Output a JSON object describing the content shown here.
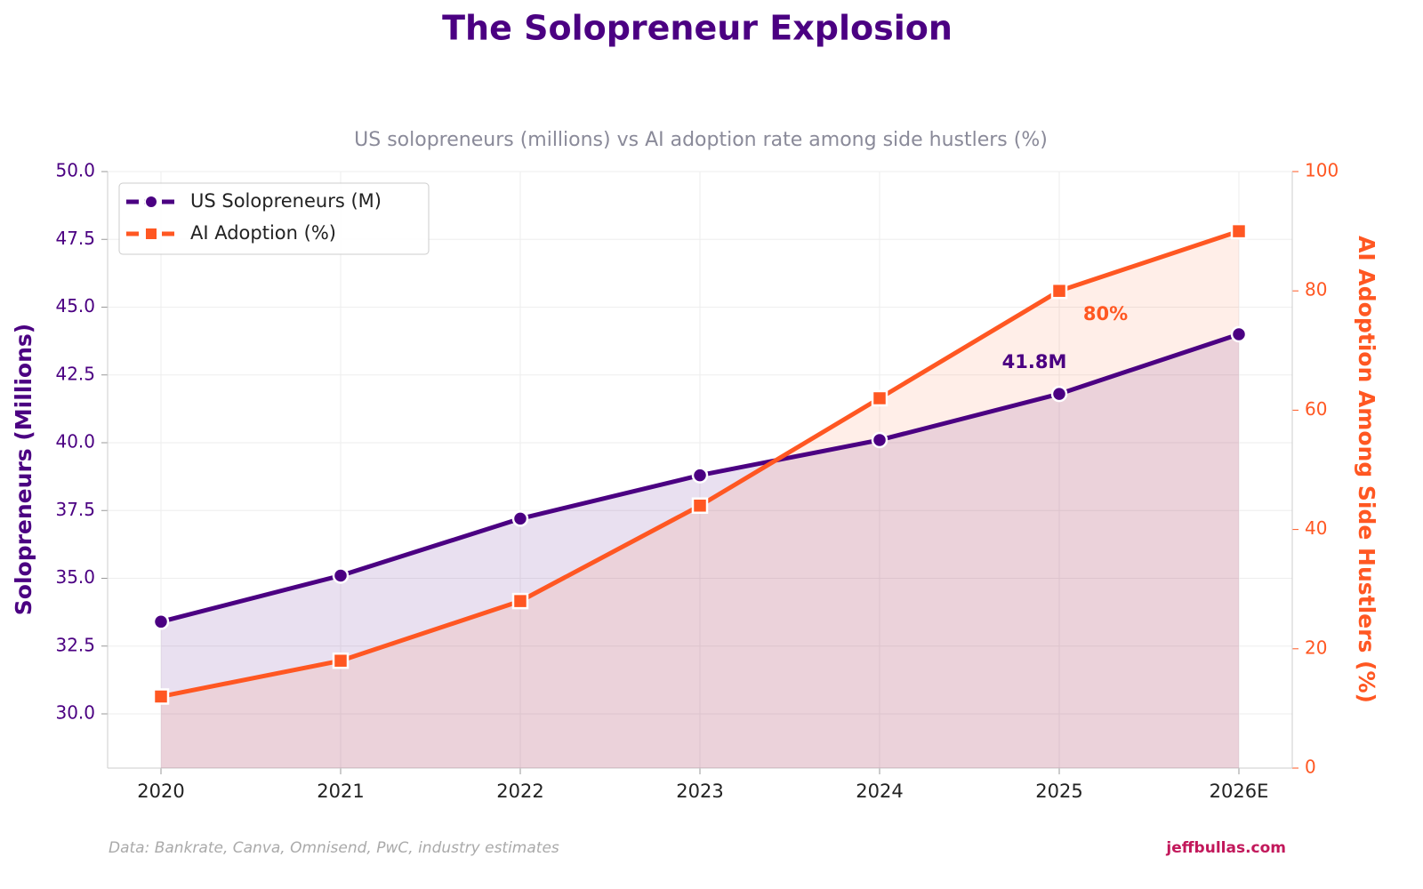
{
  "chart_data": {
    "type": "line",
    "title": "The Solopreneur Explosion",
    "subtitle": "US solopreneurs (millions) vs AI adoption rate among side hustlers (%)",
    "ylabel": "Solopreneurs (Millions)",
    "y2label": "AI Adoption Among Side Hustlers (%)",
    "categories": [
      "2020",
      "2021",
      "2022",
      "2023",
      "2024",
      "2025",
      "2026E"
    ],
    "series": [
      {
        "name": "US Solopreneurs (M)",
        "color": "#4b0082",
        "values": [
          33.4,
          35.1,
          37.2,
          38.8,
          40.1,
          41.8,
          44.0
        ]
      },
      {
        "name": "AI Adoption (%)",
        "color": "#ff5722",
        "axis": "y2",
        "values": [
          12,
          18,
          28,
          44,
          62,
          80,
          90
        ]
      }
    ],
    "ylim": [
      28,
      50
    ],
    "yticks": [
      {
        "value": 30,
        "label": "30.0"
      },
      32.5,
      {
        "value": 35,
        "label": "35.0"
      },
      37.5,
      {
        "value": 40,
        "label": "40.0"
      },
      42.5,
      {
        "value": 45,
        "label": "45.0"
      },
      47.5,
      {
        "value": 50,
        "label": "50.0"
      }
    ],
    "y2lim": [
      0,
      100
    ],
    "y2ticks": [
      0,
      20,
      40,
      60,
      80,
      100
    ],
    "annotations": [
      "41.8M",
      "80%"
    ],
    "source": "Data: Bankrate, Canva, Omnisend, PwC, industry estimates",
    "brand": "jeffbullas.com",
    "grid": true,
    "legend": "upper left"
  }
}
